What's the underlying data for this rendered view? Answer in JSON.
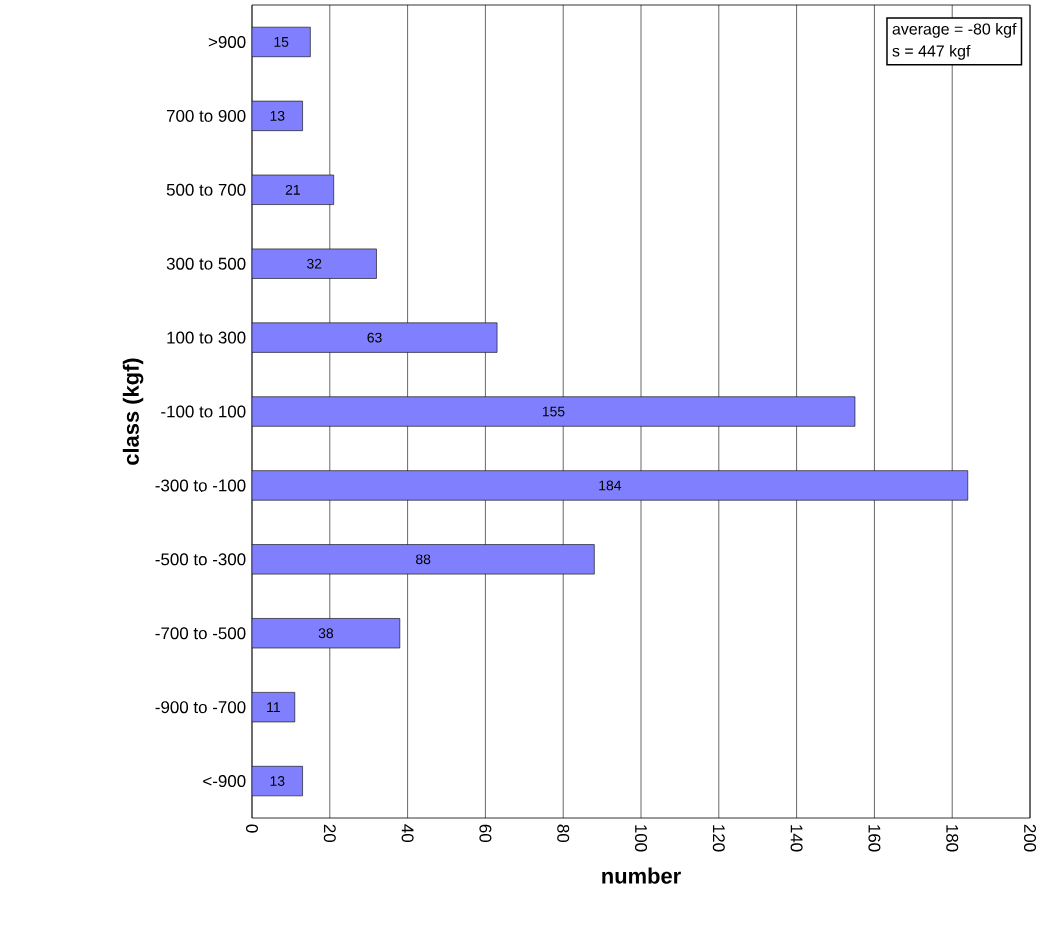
{
  "chart_data": {
    "type": "bar",
    "orientation": "horizontal",
    "categories": [
      ">900",
      "700 to 900",
      "500 to 700",
      "300 to 500",
      "100 to 300",
      "-100 to 100",
      "-300 to -100",
      "-500 to -300",
      "-700 to -500",
      "-900 to -700",
      "<-900"
    ],
    "values": [
      15,
      13,
      21,
      32,
      63,
      155,
      184,
      88,
      38,
      11,
      13
    ],
    "color": "#8080ff",
    "data_labels": true,
    "grid": "x",
    "xlim": [
      0,
      200
    ],
    "xticks": [
      0,
      20,
      40,
      60,
      80,
      100,
      120,
      140,
      160,
      180,
      200
    ],
    "xlabel": "number",
    "ylabel": "class (kgf)",
    "annotations": [
      "average =  -80 kgf",
      "s           = 447 kgf"
    ]
  }
}
